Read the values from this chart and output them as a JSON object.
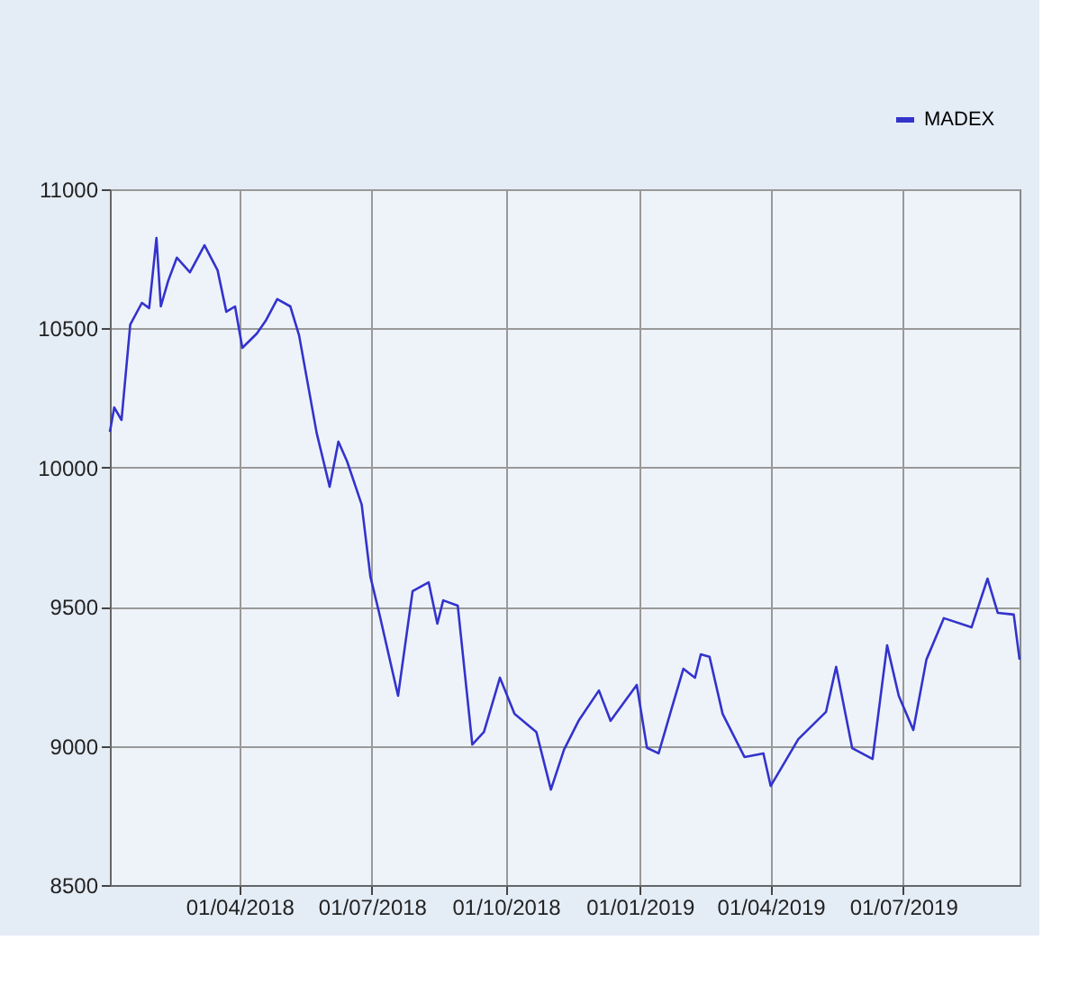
{
  "chart_data": {
    "type": "line",
    "legend": "top right",
    "grid": true,
    "line_style": "solid",
    "marker": "none",
    "xlim": [
      "2018-01-02",
      "2019-09-19"
    ],
    "xticks": [
      {
        "value": "2018-04-01",
        "label": "01/04/2018"
      },
      {
        "value": "2018-07-01",
        "label": "01/07/2018"
      },
      {
        "value": "2018-10-01",
        "label": "01/10/2018"
      },
      {
        "value": "2019-01-01",
        "label": "01/01/2019"
      },
      {
        "value": "2019-04-01",
        "label": "01/04/2019"
      },
      {
        "value": "2019-07-01",
        "label": "01/07/2019"
      }
    ],
    "ylim": [
      8500,
      11000
    ],
    "yticks": [
      8500,
      9000,
      9500,
      10000,
      10500,
      11000
    ],
    "x": [
      "2018-01-02",
      "2018-01-05",
      "2018-01-10",
      "2018-01-16",
      "2018-01-24",
      "2018-01-29",
      "2018-02-03",
      "2018-02-06",
      "2018-02-11",
      "2018-02-17",
      "2018-02-26",
      "2018-03-08",
      "2018-03-17",
      "2018-03-23",
      "2018-03-29",
      "2018-04-03",
      "2018-04-13",
      "2018-04-19",
      "2018-04-27",
      "2018-05-06",
      "2018-05-12",
      "2018-05-24",
      "2018-06-02",
      "2018-06-08",
      "2018-06-14",
      "2018-06-24",
      "2018-06-30",
      "2018-07-06",
      "2018-07-19",
      "2018-07-29",
      "2018-08-09",
      "2018-08-15",
      "2018-08-19",
      "2018-08-29",
      "2018-09-08",
      "2018-09-16",
      "2018-09-27",
      "2018-10-07",
      "2018-10-22",
      "2018-11-01",
      "2018-11-10",
      "2018-11-20",
      "2018-12-04",
      "2018-12-12",
      "2018-12-30",
      "2019-01-06",
      "2019-01-14",
      "2019-01-23",
      "2019-01-31",
      "2019-02-08",
      "2019-02-12",
      "2019-02-18",
      "2019-02-27",
      "2019-03-14",
      "2019-03-27",
      "2019-04-01",
      "2019-04-20",
      "2019-05-09",
      "2019-05-16",
      "2019-05-27",
      "2019-06-10",
      "2019-06-20",
      "2019-06-28",
      "2019-07-08",
      "2019-07-17",
      "2019-07-29",
      "2019-08-17",
      "2019-08-28",
      "2019-09-04",
      "2019-09-15",
      "2019-09-19"
    ],
    "series": [
      {
        "name": "MADEX",
        "color": "#3333cc",
        "values": [
          10128,
          10216,
          10171,
          10514,
          10592,
          10573,
          10825,
          10579,
          10670,
          10754,
          10702,
          10799,
          10709,
          10560,
          10579,
          10430,
          10482,
          10527,
          10605,
          10579,
          10475,
          10126,
          9931,
          10093,
          10022,
          9867,
          9608,
          9478,
          9180,
          9556,
          9588,
          9439,
          9523,
          9504,
          9005,
          9050,
          9245,
          9115,
          9050,
          8843,
          8986,
          9090,
          9199,
          9090,
          9219,
          8993,
          8973,
          9135,
          9277,
          9245,
          9329,
          9320,
          9115,
          8960,
          8973,
          8856,
          9024,
          9122,
          9284,
          8992,
          8953,
          9361,
          9180,
          9057,
          9310,
          9459,
          9426,
          9601,
          9478,
          9472,
          9310
        ]
      }
    ]
  }
}
